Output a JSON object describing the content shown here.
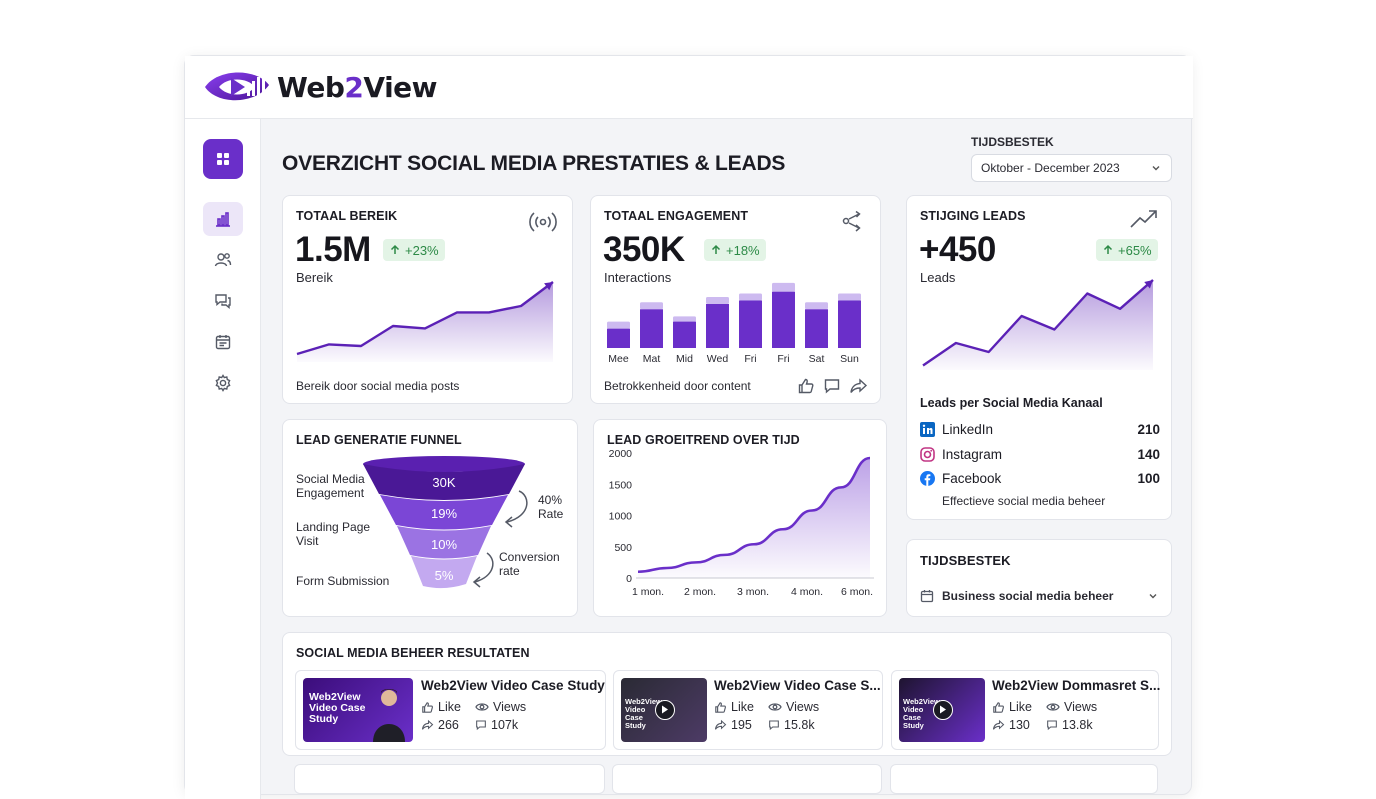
{
  "app": {
    "logo_text_a": "Web",
    "logo_text_b": "2",
    "logo_text_c": "View"
  },
  "header": {
    "page_title": "OVERZICHT SOCIAL MEDIA PRESTATIES & LEADS",
    "range_label": "TIJDSBESTEK",
    "range_value": "Oktober - December 2023"
  },
  "sidebar": {
    "items": [
      {
        "icon": "grid-icon"
      },
      {
        "icon": "bar-chart-icon"
      },
      {
        "icon": "users-icon"
      },
      {
        "icon": "chat-icon"
      },
      {
        "icon": "calendar-icon"
      },
      {
        "icon": "gear-icon"
      }
    ]
  },
  "kpi": {
    "bereik": {
      "title": "TOTAAL BEREIK",
      "value": "1.5M",
      "change": "+23%",
      "unit": "Bereik",
      "footer": "Bereik door social media posts"
    },
    "engagement": {
      "title": "TOTAAL ENGAGEMENT",
      "value": "350K",
      "change": "+18%",
      "unit": "Interactions",
      "footer": "Betrokkenheid door content"
    },
    "leads": {
      "title": "STIJGING LEADS",
      "value": "+450",
      "change": "+65%",
      "unit": "Leads",
      "kanaal_title": "Leads per Social Media Kanaal",
      "kanalen": [
        {
          "name": "LinkedIn",
          "value": "210",
          "icon": "linkedin-icon",
          "color": "#0a66c2"
        },
        {
          "name": "Instagram",
          "value": "140",
          "icon": "instagram-icon",
          "color": "#c13584"
        },
        {
          "name": "Facebook",
          "value": "100",
          "icon": "facebook-icon",
          "color": "#1877f2"
        }
      ],
      "footer": "Effectieve social media beheer"
    }
  },
  "funnel": {
    "title": "LEAD GENERATIE FUNNEL",
    "stages": [
      {
        "label": "Social Media Engagement",
        "value": "30K"
      },
      {
        "label": "Landing Page Visit",
        "value": "19%"
      },
      {
        "label": "",
        "value": "10%"
      },
      {
        "label": "Form Submission",
        "value": "5%"
      }
    ],
    "rate_label": "40% Rate",
    "conversion_label": "Conversion rate"
  },
  "trend": {
    "title": "LEAD GROEITREND OVER TIJD"
  },
  "tijdsbestek": {
    "title": "TIJDSBESTEK",
    "value": "Business social media beheer"
  },
  "results": {
    "title": "SOCIAL MEDIA BEHEER RESULTATEN",
    "like_label": "Like",
    "views_label": "Views",
    "videos": [
      {
        "title": "Web2View Video Case Study",
        "thumb_text": "Web2View Video Case Study",
        "shares": "266",
        "views": "107k"
      },
      {
        "title": "Web2View Video Case S...",
        "thumb_text": "Web2View Video Case Study",
        "shares": "195",
        "views": "15.8k"
      },
      {
        "title": "Web2View Dommasret S...",
        "thumb_text": "Web2View Video Case Study",
        "shares": "130",
        "views": "13.8k"
      }
    ]
  },
  "chart_data": [
    {
      "type": "area",
      "title": "",
      "x": [
        1,
        2,
        3,
        4,
        5,
        6,
        7,
        8,
        9
      ],
      "values": [
        0.1,
        0.22,
        0.2,
        0.45,
        0.42,
        0.62,
        0.62,
        0.7,
        1.0
      ],
      "xlabel": "",
      "ylabel": "",
      "grid": false,
      "color": "#5b21b6"
    },
    {
      "type": "bar",
      "title": "",
      "categories": [
        "Mee",
        "Mat",
        "Mid",
        "Wed",
        "Fri",
        "Fri",
        "Sat",
        "Sun"
      ],
      "series": [
        {
          "values": [
            22,
            44,
            30,
            50,
            54,
            64,
            44,
            54
          ]
        },
        {
          "values": [
            8,
            8,
            6,
            8,
            8,
            10,
            8,
            8
          ]
        }
      ],
      "ylim": [
        0,
        75
      ],
      "grid": false,
      "colors": [
        "#6a2fc9",
        "#cdbaf0"
      ]
    },
    {
      "type": "area",
      "title": "",
      "x": [
        1,
        2,
        3,
        4,
        5,
        6,
        7,
        8
      ],
      "values": [
        0.05,
        0.3,
        0.2,
        0.6,
        0.45,
        0.85,
        0.68,
        1.0
      ],
      "grid": false,
      "color": "#5b21b6"
    },
    {
      "type": "area",
      "title": "",
      "categories": [
        "1 mon.",
        "2 mon.",
        "3 mon.",
        "4 mon.",
        "6 mon."
      ],
      "x": [
        0,
        1,
        2,
        3,
        4,
        5,
        6,
        7,
        8
      ],
      "values": [
        100,
        160,
        250,
        370,
        540,
        780,
        1080,
        1450,
        1920
      ],
      "yticks": [
        0,
        500,
        1000,
        1500,
        2000
      ],
      "ylim": [
        0,
        2000
      ],
      "grid": false,
      "color": "#6a2fc9"
    }
  ],
  "colors": {
    "accent": "#6a2fc9",
    "accent_light": "#cdbaf0",
    "positive_bg": "#e3f4e6",
    "positive_text": "#2d8a47"
  }
}
